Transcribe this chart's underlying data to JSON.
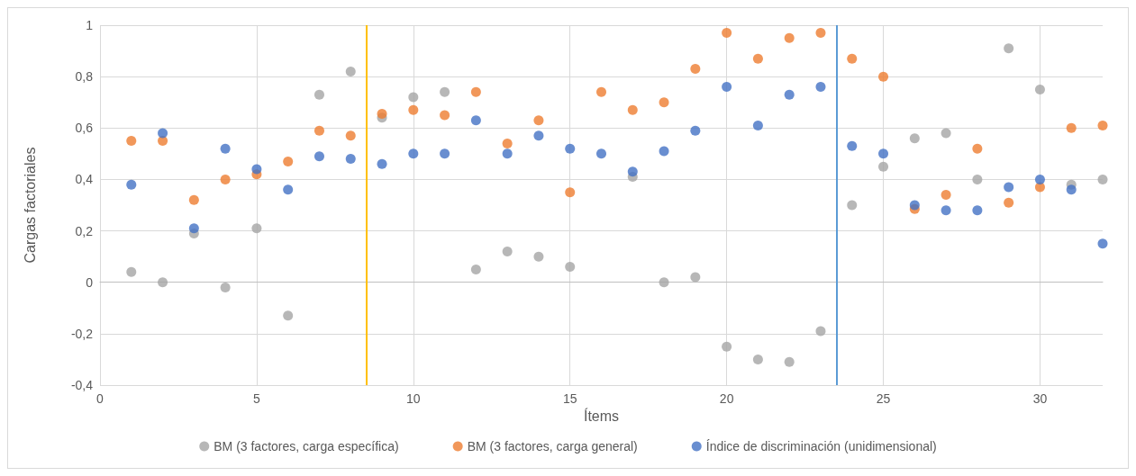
{
  "chart_data": {
    "type": "scatter",
    "xlabel": "Ítems",
    "ylabel": "Cargas factoriales",
    "xlim": [
      0,
      32
    ],
    "xticks": [
      0,
      5,
      10,
      15,
      20,
      25,
      30
    ],
    "ylim": [
      -0.4,
      1
    ],
    "yticks": [
      {
        "value": -0.4,
        "label": "-0,4"
      },
      {
        "value": -0.2,
        "label": "-0,2"
      },
      0,
      {
        "value": 0.2,
        "label": "0,2"
      },
      {
        "value": 0.4,
        "label": "0,4"
      },
      {
        "value": 0.6,
        "label": "0,6"
      },
      {
        "value": 0.8,
        "label": "0,8"
      },
      1
    ],
    "x": [
      1,
      2,
      3,
      4,
      5,
      6,
      7,
      8,
      9,
      10,
      11,
      12,
      13,
      14,
      15,
      16,
      17,
      18,
      19,
      20,
      21,
      22,
      23,
      24,
      25,
      26,
      27,
      28,
      29,
      30,
      31,
      32
    ],
    "grid": true,
    "legend": "bottom",
    "marker": "circle",
    "series": [
      {
        "name": "BM (3 factores, carga específica)",
        "color": "#a5a5a5",
        "values": [
          0.04,
          0.0,
          0.19,
          -0.02,
          0.21,
          -0.13,
          0.73,
          0.82,
          0.64,
          0.72,
          0.74,
          0.05,
          0.12,
          0.1,
          0.06,
          null,
          0.41,
          0.0,
          0.02,
          -0.25,
          -0.3,
          -0.31,
          -0.19,
          0.3,
          0.45,
          0.56,
          0.58,
          0.4,
          0.91,
          0.75,
          0.38,
          0.4
        ]
      },
      {
        "name": "BM (3 factores, carga general)",
        "color": "#ed7d31",
        "values": [
          0.55,
          0.55,
          0.32,
          0.4,
          0.42,
          0.47,
          0.59,
          0.57,
          0.655,
          0.67,
          0.65,
          0.74,
          0.54,
          0.63,
          0.35,
          0.74,
          0.67,
          0.7,
          0.83,
          0.97,
          0.87,
          0.95,
          0.97,
          0.87,
          0.8,
          0.285,
          0.34,
          0.52,
          0.31,
          0.37,
          0.6,
          0.61
        ]
      },
      {
        "name": "Índice de discriminación (unidimensional)",
        "color": "#4472c4",
        "values": [
          0.38,
          0.58,
          0.21,
          0.52,
          0.44,
          0.36,
          0.49,
          0.48,
          0.46,
          0.5,
          0.5,
          0.63,
          0.5,
          0.57,
          0.52,
          0.5,
          0.43,
          0.51,
          0.59,
          0.76,
          0.61,
          0.73,
          0.76,
          0.53,
          0.5,
          0.3,
          0.28,
          0.28,
          0.37,
          0.4,
          0.36,
          0.15
        ]
      }
    ],
    "ref_lines": [
      {
        "axis": "x",
        "value": 8.5,
        "color": "#ffc000",
        "line_style": "solid"
      },
      {
        "axis": "x",
        "value": 23.5,
        "color": "#5b9bd5",
        "line_style": "solid"
      }
    ]
  }
}
